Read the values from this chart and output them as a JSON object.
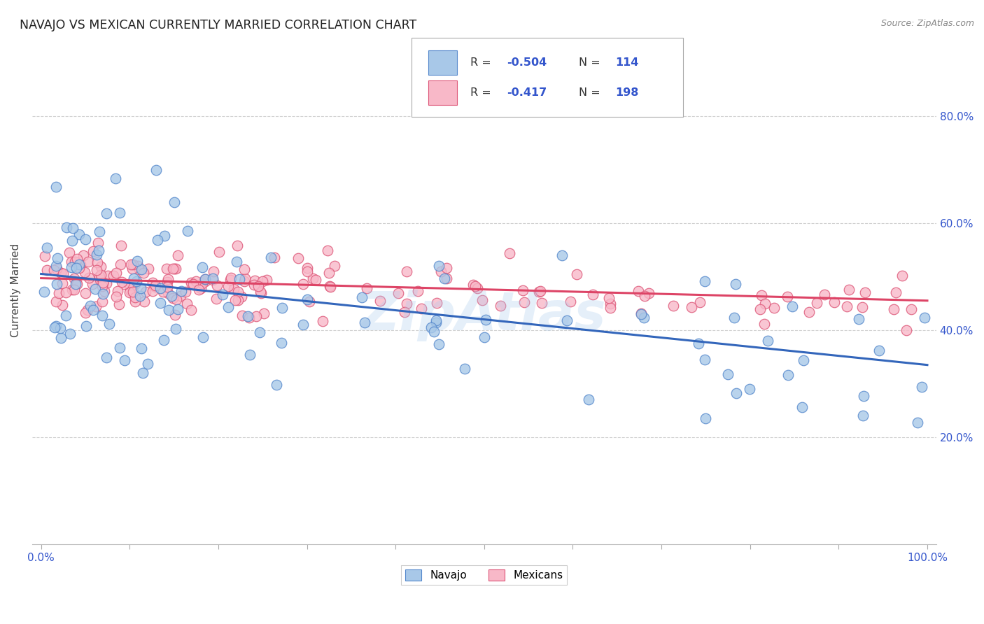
{
  "title": "NAVAJO VS MEXICAN CURRENTLY MARRIED CORRELATION CHART",
  "source": "Source: ZipAtlas.com",
  "ylabel": "Currently Married",
  "navajo_R": -0.504,
  "navajo_N": 114,
  "mexican_R": -0.417,
  "mexican_N": 198,
  "navajo_color": "#a8c8e8",
  "navajo_edge_color": "#5588cc",
  "mexican_color": "#f8b8c8",
  "mexican_edge_color": "#dd5577",
  "navajo_line_color": "#3366bb",
  "mexican_line_color": "#dd4466",
  "background_color": "#ffffff",
  "grid_color": "#cccccc",
  "title_color": "#222222",
  "source_color": "#888888",
  "legend_text_color": "#3355cc",
  "axis_label_color": "#3355cc",
  "watermark": "ZipAtlas",
  "ylim_min": 0.0,
  "ylim_max": 0.95,
  "xlim_min": -0.01,
  "xlim_max": 1.01,
  "nav_line_y0": 0.505,
  "nav_line_y1": 0.335,
  "mex_line_y0": 0.497,
  "mex_line_y1": 0.455
}
